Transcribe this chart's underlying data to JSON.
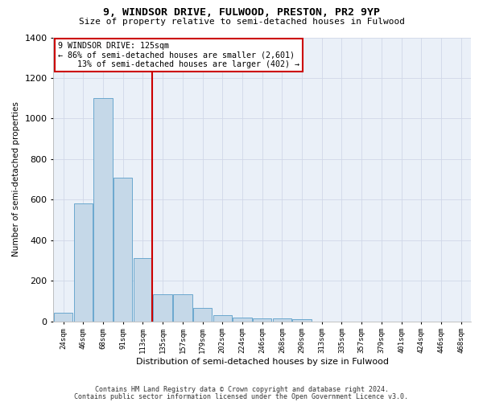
{
  "title": "9, WINDSOR DRIVE, FULWOOD, PRESTON, PR2 9YP",
  "subtitle": "Size of property relative to semi-detached houses in Fulwood",
  "xlabel": "Distribution of semi-detached houses by size in Fulwood",
  "ylabel": "Number of semi-detached properties",
  "footnote1": "Contains HM Land Registry data © Crown copyright and database right 2024.",
  "footnote2": "Contains public sector information licensed under the Open Government Licence v3.0.",
  "bins": [
    "24sqm",
    "46sqm",
    "68sqm",
    "91sqm",
    "113sqm",
    "135sqm",
    "157sqm",
    "179sqm",
    "202sqm",
    "224sqm",
    "246sqm",
    "268sqm",
    "290sqm",
    "313sqm",
    "335sqm",
    "357sqm",
    "379sqm",
    "401sqm",
    "424sqm",
    "446sqm",
    "468sqm"
  ],
  "values": [
    40,
    580,
    1100,
    710,
    310,
    135,
    135,
    65,
    30,
    20,
    15,
    15,
    10,
    0,
    0,
    0,
    0,
    0,
    0,
    0,
    0
  ],
  "bar_color": "#c5d8e8",
  "bar_edge_color": "#5a9ec9",
  "ref_line_label": "9 WINDSOR DRIVE: 125sqm",
  "pct_smaller": "86% of semi-detached houses are smaller (2,601)",
  "pct_larger": "13% of semi-detached houses are larger (402)",
  "annotation_box_color": "#ffffff",
  "annotation_box_edge_color": "#cc0000",
  "ref_line_color": "#cc0000",
  "grid_color": "#d0d8e8",
  "background_color": "#eaf0f8",
  "ylim": [
    0,
    1400
  ],
  "yticks": [
    0,
    200,
    400,
    600,
    800,
    1000,
    1200,
    1400
  ]
}
